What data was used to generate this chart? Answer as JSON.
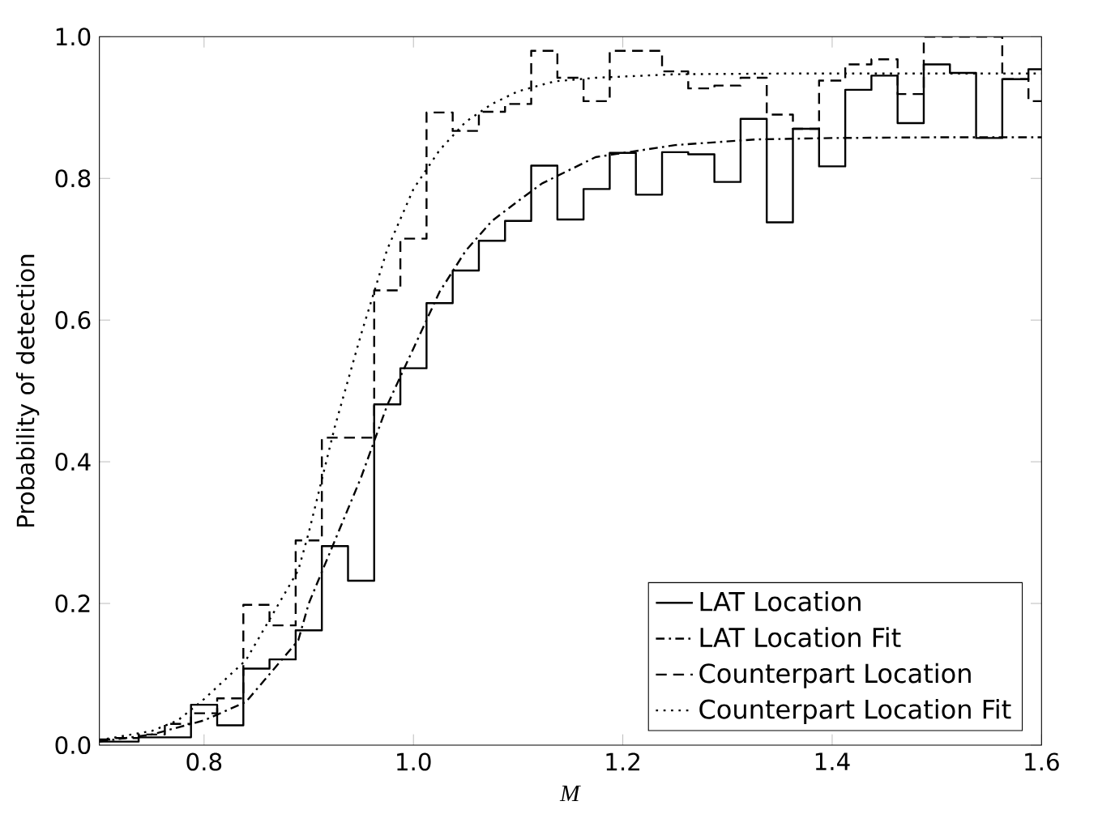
{
  "chart_data": {
    "type": "line",
    "xlabel": "*M*",
    "ylabel": "Probability of detection",
    "xlim": [
      0.7,
      1.6
    ],
    "ylim": [
      0,
      1
    ],
    "xticks": [
      {
        "value": 0.8,
        "label": "0.8"
      },
      {
        "value": 1.0,
        "label": "1.0"
      },
      {
        "value": 1.2,
        "label": "1.2"
      },
      {
        "value": 1.4,
        "label": "1.4"
      },
      {
        "value": 1.6,
        "label": "1.6"
      }
    ],
    "yticks": [
      {
        "value": 0,
        "label": "0.0"
      },
      {
        "value": 0.2,
        "label": "0.2"
      },
      {
        "value": 0.4,
        "label": "0.4"
      },
      {
        "value": 0.6,
        "label": "0.6"
      },
      {
        "value": 0.8,
        "label": "0.8"
      },
      {
        "value": 1.0,
        "label": "1.0"
      }
    ],
    "grid": false,
    "legend": "bottom right",
    "series": [
      {
        "name": "LAT Location",
        "type": "step",
        "color": "#000000",
        "line_style": "solid",
        "x": [
          0.7,
          0.725,
          0.75,
          0.775,
          0.8,
          0.825,
          0.85,
          0.875,
          0.9,
          0.925,
          0.95,
          0.975,
          1.0,
          1.025,
          1.05,
          1.075,
          1.1,
          1.125,
          1.15,
          1.175,
          1.2,
          1.225,
          1.25,
          1.275,
          1.3,
          1.325,
          1.35,
          1.375,
          1.4,
          1.425,
          1.45,
          1.475,
          1.5,
          1.525,
          1.55,
          1.575,
          1.6
        ],
        "values": [
          0.005,
          0.005,
          0.011,
          0.011,
          0.057,
          0.028,
          0.108,
          0.121,
          0.162,
          0.281,
          0.232,
          0.481,
          0.532,
          0.624,
          0.67,
          0.712,
          0.74,
          0.818,
          0.742,
          0.785,
          0.836,
          0.777,
          0.837,
          0.834,
          0.795,
          0.884,
          0.738,
          0.87,
          0.817,
          0.925,
          0.945,
          0.878,
          0.961,
          0.949,
          0.857,
          0.94,
          0.954
        ]
      },
      {
        "name": "LAT Location Fit",
        "color": "#000000",
        "line_style": "dashdot",
        "x": [
          0.7,
          0.75,
          0.8,
          0.84,
          0.89,
          0.9,
          0.95,
          0.975,
          1.0,
          1.025,
          1.05,
          1.075,
          1.1,
          1.123,
          1.174,
          1.25,
          1.327,
          1.4,
          1.5,
          1.6
        ],
        "values": [
          0.005,
          0.015,
          0.035,
          0.061,
          0.148,
          0.2,
          0.378,
          0.48,
          0.56,
          0.64,
          0.698,
          0.74,
          0.768,
          0.793,
          0.83,
          0.847,
          0.855,
          0.857,
          0.858,
          0.858
        ]
      },
      {
        "name": "Counterpart Location",
        "type": "step",
        "color": "#000000",
        "line_style": "dashed",
        "x": [
          0.7,
          0.725,
          0.75,
          0.775,
          0.8,
          0.825,
          0.85,
          0.875,
          0.9,
          0.925,
          0.95,
          0.975,
          1.0,
          1.025,
          1.05,
          1.075,
          1.1,
          1.125,
          1.15,
          1.175,
          1.2,
          1.225,
          1.25,
          1.275,
          1.3,
          1.325,
          1.35,
          1.375,
          1.4,
          1.425,
          1.45,
          1.475,
          1.5,
          1.525,
          1.55,
          1.575,
          1.6
        ],
        "values": [
          0.008,
          0.01,
          0.015,
          0.03,
          0.045,
          0.066,
          0.198,
          0.169,
          0.289,
          0.434,
          0.434,
          0.642,
          0.715,
          0.893,
          0.867,
          0.894,
          0.905,
          0.98,
          0.942,
          0.909,
          0.98,
          0.98,
          0.951,
          0.927,
          0.931,
          0.942,
          0.89,
          0.87,
          0.938,
          0.961,
          0.968,
          0.919,
          1.0,
          1.0,
          1.0,
          0.94,
          0.909
        ]
      },
      {
        "name": "Counterpart Location Fit",
        "color": "#000000",
        "line_style": "dotted",
        "x": [
          0.7,
          0.75,
          0.775,
          0.8,
          0.84,
          0.89,
          0.9,
          0.925,
          0.95,
          0.975,
          1.0,
          1.025,
          1.05,
          1.075,
          1.1,
          1.135,
          1.174,
          1.25,
          1.35,
          1.45,
          1.6
        ],
        "values": [
          0.007,
          0.02,
          0.035,
          0.065,
          0.12,
          0.247,
          0.3,
          0.45,
          0.58,
          0.7,
          0.785,
          0.84,
          0.88,
          0.905,
          0.923,
          0.937,
          0.942,
          0.947,
          0.948,
          0.948,
          0.948
        ]
      }
    ]
  }
}
